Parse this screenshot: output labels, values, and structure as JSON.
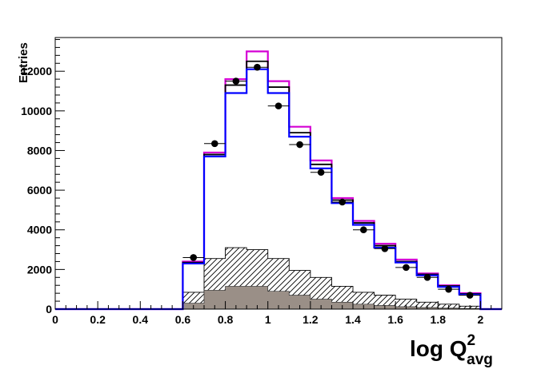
{
  "chart_data": {
    "type": "histogram",
    "title": "",
    "ylabel": "Entries",
    "xlabel": {
      "main": "log Q",
      "superscript": "2",
      "subscript": "avg"
    },
    "xlim": [
      0,
      2.1
    ],
    "ylim": [
      0,
      13700
    ],
    "xticks": [
      0,
      0.2,
      0.4,
      0.6,
      0.8,
      1,
      1.2,
      1.4,
      1.6,
      1.8,
      2
    ],
    "xtick_labels": [
      "0",
      "0.2",
      "0.4",
      "0.6",
      "0.8",
      "1",
      "1.2",
      "1.4",
      "1.6",
      "1.8",
      "2"
    ],
    "yticks": [
      0,
      2000,
      4000,
      6000,
      8000,
      10000,
      12000
    ],
    "ytick_labels": [
      "0",
      "2000",
      "4000",
      "6000",
      "8000",
      "10000",
      "12000"
    ],
    "grid": false,
    "legend": false,
    "bin_edges": [
      0.6,
      0.7,
      0.8,
      0.9,
      1.0,
      1.1,
      1.2,
      1.3,
      1.4,
      1.5,
      1.6,
      1.7,
      1.8,
      1.9,
      2.0
    ],
    "series": [
      {
        "style": "magenta-line",
        "color": "#d400d4",
        "values": [
          2400,
          7900,
          11600,
          13000,
          11500,
          9200,
          7500,
          5600,
          4450,
          3300,
          2500,
          1800,
          1200,
          800
        ]
      },
      {
        "style": "black-line",
        "color": "#000000",
        "values": [
          2350,
          7800,
          11300,
          12500,
          11200,
          8900,
          7300,
          5500,
          4350,
          3200,
          2400,
          1750,
          1170,
          770
        ]
      },
      {
        "style": "blue-line",
        "color": "#0000ff",
        "values": [
          2300,
          7700,
          10900,
          12100,
          10900,
          8700,
          7100,
          5350,
          4250,
          3100,
          2350,
          1700,
          1120,
          730
        ]
      },
      {
        "style": "hatched",
        "color": "#000000",
        "values": [
          850,
          2550,
          3100,
          3000,
          2550,
          1950,
          1600,
          1150,
          850,
          700,
          500,
          350,
          250,
          150
        ]
      },
      {
        "style": "filled-gray",
        "color": "#9a8f87",
        "values": [
          300,
          950,
          1150,
          1150,
          900,
          700,
          500,
          350,
          250,
          180,
          120,
          80,
          50,
          30
        ]
      }
    ],
    "points": {
      "style": "black-markers",
      "x": [
        0.65,
        0.75,
        0.85,
        0.95,
        1.05,
        1.15,
        1.25,
        1.35,
        1.45,
        1.55,
        1.65,
        1.75,
        1.85,
        1.95
      ],
      "y": [
        2600,
        8350,
        11500,
        12200,
        10250,
        8300,
        6900,
        5400,
        4000,
        3050,
        2100,
        1600,
        1000,
        700
      ]
    }
  }
}
